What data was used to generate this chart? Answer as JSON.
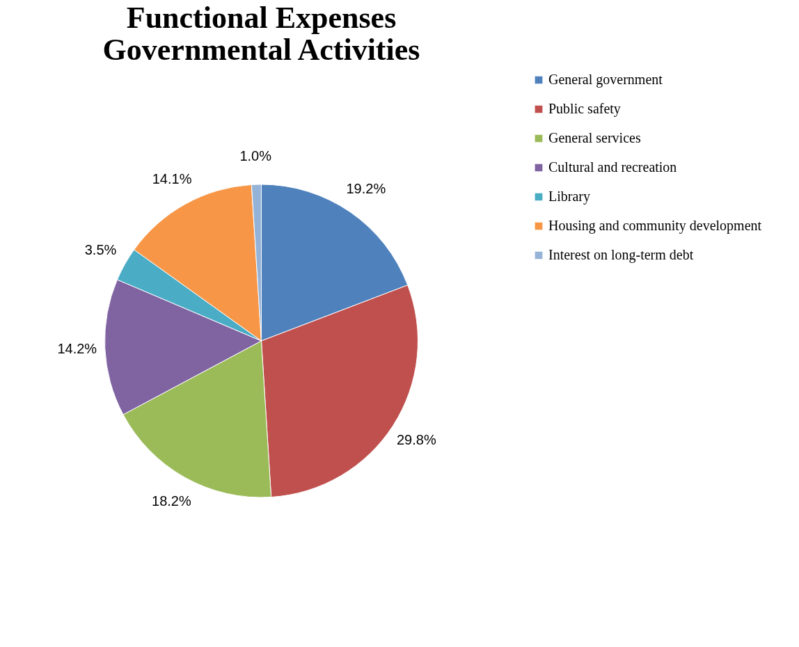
{
  "chart_data": {
    "type": "pie",
    "title": [
      "Functional Expenses",
      "Governmental Activities"
    ],
    "categories": [
      "General government",
      "Public safety",
      "General services",
      "Cultural and recreation",
      "Library",
      "Housing and community development",
      "Interest on long-term debt"
    ],
    "values": [
      19.2,
      29.8,
      18.2,
      14.2,
      3.5,
      14.1,
      1.0
    ],
    "colors": [
      "#4f81bd",
      "#c0504d",
      "#9bbb59",
      "#8064a2",
      "#4bacc6",
      "#f79646",
      "#95b3d7"
    ],
    "value_labels": [
      "19.2%",
      "29.8%",
      "18.2%",
      "14.2%",
      "3.5%",
      "14.1%",
      "1.0%"
    ],
    "legend": "right"
  }
}
